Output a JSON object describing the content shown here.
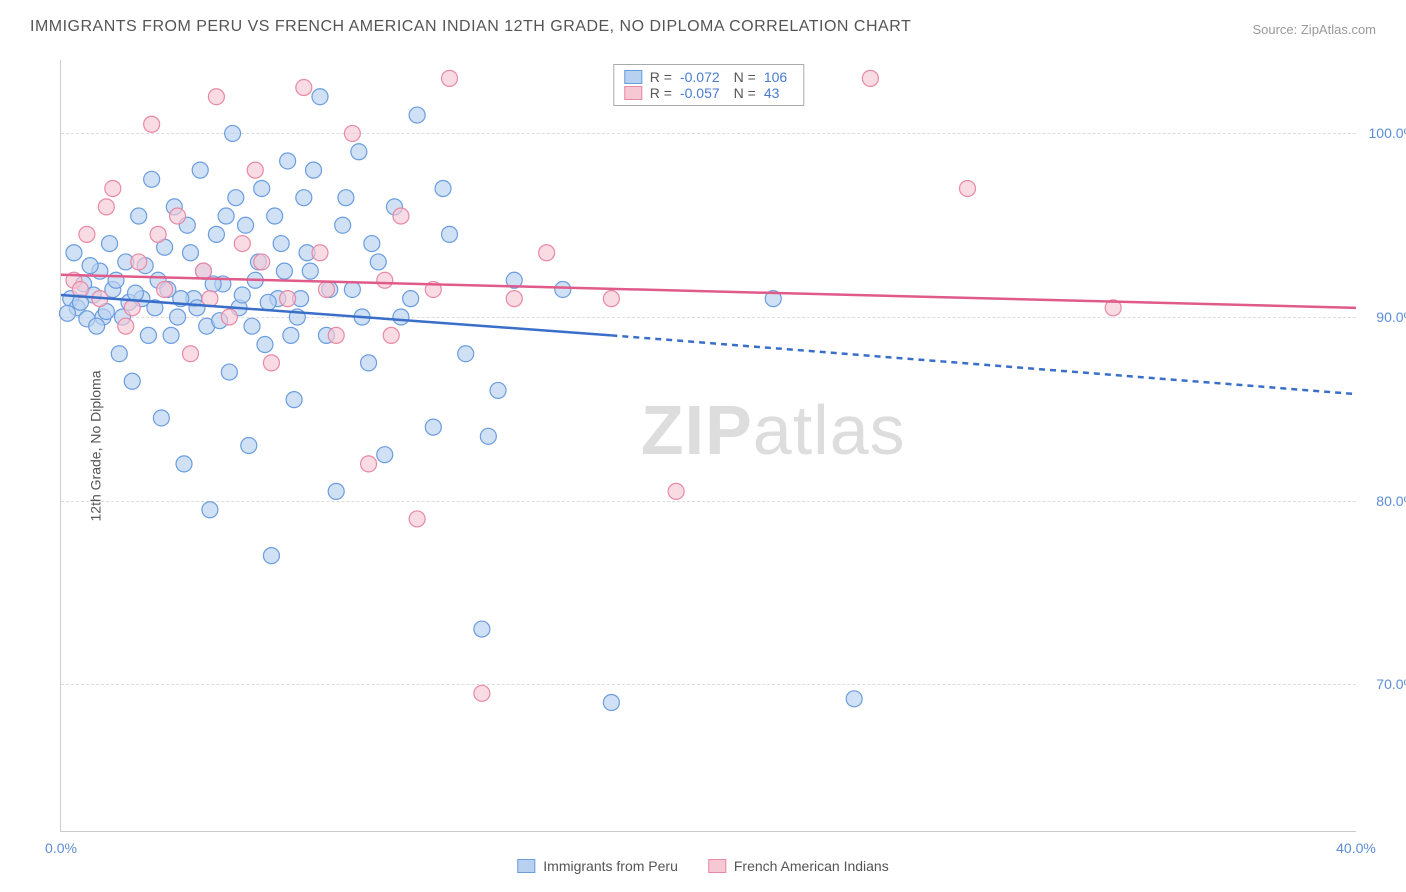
{
  "title": "IMMIGRANTS FROM PERU VS FRENCH AMERICAN INDIAN 12TH GRADE, NO DIPLOMA CORRELATION CHART",
  "source": "Source: ZipAtlas.com",
  "ylabel": "12th Grade, No Diploma",
  "watermark_bold": "ZIP",
  "watermark_light": "atlas",
  "chart": {
    "type": "scatter",
    "xlim": [
      0,
      40
    ],
    "ylim": [
      62,
      104
    ],
    "xticks": [
      0,
      40
    ],
    "xtick_labels": [
      "0.0%",
      "40.0%"
    ],
    "yticks": [
      70,
      80,
      90,
      100
    ],
    "ytick_labels": [
      "70.0%",
      "80.0%",
      "90.0%",
      "100.0%"
    ],
    "grid_color": "#dddddd",
    "axis_color": "#cccccc",
    "background_color": "#ffffff",
    "series": [
      {
        "name": "Immigrants from Peru",
        "color_fill": "#b9d1f0",
        "color_stroke": "#6a9de0",
        "marker_radius": 8,
        "line_color": "#3a6fc9",
        "line_width": 2.5,
        "trend_solid": {
          "x1": 0,
          "y1": 91.2,
          "x2": 17,
          "y2": 89.0
        },
        "trend_dashed": {
          "x1": 17,
          "y1": 89.0,
          "x2": 40,
          "y2": 85.8
        },
        "R": "-0.072",
        "N": "106",
        "points": [
          [
            0.3,
            91.0
          ],
          [
            0.5,
            90.5
          ],
          [
            0.7,
            91.8
          ],
          [
            0.8,
            89.9
          ],
          [
            1.0,
            91.2
          ],
          [
            1.2,
            92.5
          ],
          [
            1.3,
            90.0
          ],
          [
            1.5,
            94.0
          ],
          [
            1.6,
            91.5
          ],
          [
            1.8,
            88.0
          ],
          [
            2.0,
            93.0
          ],
          [
            2.1,
            90.8
          ],
          [
            2.2,
            86.5
          ],
          [
            2.4,
            95.5
          ],
          [
            2.5,
            91.0
          ],
          [
            2.7,
            89.0
          ],
          [
            2.8,
            97.5
          ],
          [
            3.0,
            92.0
          ],
          [
            3.1,
            84.5
          ],
          [
            3.3,
            91.5
          ],
          [
            3.5,
            96.0
          ],
          [
            3.6,
            90.0
          ],
          [
            3.8,
            82.0
          ],
          [
            4.0,
            93.5
          ],
          [
            4.1,
            91.0
          ],
          [
            4.3,
            98.0
          ],
          [
            4.5,
            89.5
          ],
          [
            4.6,
            79.5
          ],
          [
            4.8,
            94.5
          ],
          [
            5.0,
            91.8
          ],
          [
            5.2,
            87.0
          ],
          [
            5.3,
            100.0
          ],
          [
            5.5,
            90.5
          ],
          [
            5.7,
            95.0
          ],
          [
            5.8,
            83.0
          ],
          [
            6.0,
            92.0
          ],
          [
            6.2,
            97.0
          ],
          [
            6.3,
            88.5
          ],
          [
            6.5,
            77.0
          ],
          [
            6.7,
            91.0
          ],
          [
            6.8,
            94.0
          ],
          [
            7.0,
            98.5
          ],
          [
            7.2,
            85.5
          ],
          [
            7.3,
            90.0
          ],
          [
            7.5,
            96.5
          ],
          [
            7.7,
            92.5
          ],
          [
            8.0,
            102.0
          ],
          [
            8.2,
            89.0
          ],
          [
            8.5,
            80.5
          ],
          [
            8.7,
            95.0
          ],
          [
            9.0,
            91.5
          ],
          [
            9.2,
            99.0
          ],
          [
            9.5,
            87.5
          ],
          [
            9.8,
            93.0
          ],
          [
            10.0,
            82.5
          ],
          [
            10.3,
            96.0
          ],
          [
            10.5,
            90.0
          ],
          [
            11.0,
            101.0
          ],
          [
            11.5,
            84.0
          ],
          [
            12.0,
            94.5
          ],
          [
            12.5,
            88.0
          ],
          [
            13.0,
            73.0
          ],
          [
            13.5,
            86.0
          ],
          [
            14.0,
            92.0
          ],
          [
            15.5,
            91.5
          ],
          [
            17.0,
            69.0
          ],
          [
            22.0,
            91.0
          ],
          [
            24.5,
            69.2
          ],
          [
            0.2,
            90.2
          ],
          [
            0.4,
            93.5
          ],
          [
            0.6,
            90.8
          ],
          [
            0.9,
            92.8
          ],
          [
            1.1,
            89.5
          ],
          [
            1.4,
            90.3
          ],
          [
            1.7,
            92.0
          ],
          [
            1.9,
            90.0
          ],
          [
            2.3,
            91.3
          ],
          [
            2.6,
            92.8
          ],
          [
            2.9,
            90.5
          ],
          [
            3.2,
            93.8
          ],
          [
            3.4,
            89.0
          ],
          [
            3.7,
            91.0
          ],
          [
            3.9,
            95.0
          ],
          [
            4.2,
            90.5
          ],
          [
            4.4,
            92.5
          ],
          [
            4.7,
            91.8
          ],
          [
            4.9,
            89.8
          ],
          [
            5.1,
            95.5
          ],
          [
            5.4,
            96.5
          ],
          [
            5.6,
            91.2
          ],
          [
            5.9,
            89.5
          ],
          [
            6.1,
            93.0
          ],
          [
            6.4,
            90.8
          ],
          [
            6.6,
            95.5
          ],
          [
            6.9,
            92.5
          ],
          [
            7.1,
            89.0
          ],
          [
            7.4,
            91.0
          ],
          [
            7.6,
            93.5
          ],
          [
            7.8,
            98.0
          ],
          [
            8.3,
            91.5
          ],
          [
            8.8,
            96.5
          ],
          [
            9.3,
            90.0
          ],
          [
            9.6,
            94.0
          ],
          [
            10.8,
            91.0
          ],
          [
            11.8,
            97.0
          ],
          [
            13.2,
            83.5
          ]
        ]
      },
      {
        "name": "French American Indians",
        "color_fill": "#f5c8d4",
        "color_stroke": "#e889a5",
        "marker_radius": 8,
        "line_color": "#e05a8a",
        "line_width": 2.5,
        "trend_solid": {
          "x1": 0,
          "y1": 92.3,
          "x2": 40,
          "y2": 90.5
        },
        "trend_dashed": null,
        "R": "-0.057",
        "N": "43",
        "points": [
          [
            0.4,
            92.0
          ],
          [
            0.8,
            94.5
          ],
          [
            1.2,
            91.0
          ],
          [
            1.6,
            97.0
          ],
          [
            2.0,
            89.5
          ],
          [
            2.4,
            93.0
          ],
          [
            2.8,
            100.5
          ],
          [
            3.2,
            91.5
          ],
          [
            3.6,
            95.5
          ],
          [
            4.0,
            88.0
          ],
          [
            4.4,
            92.5
          ],
          [
            4.8,
            102.0
          ],
          [
            5.2,
            90.0
          ],
          [
            5.6,
            94.0
          ],
          [
            6.0,
            98.0
          ],
          [
            6.5,
            87.5
          ],
          [
            7.0,
            91.0
          ],
          [
            7.5,
            102.5
          ],
          [
            8.0,
            93.5
          ],
          [
            8.5,
            89.0
          ],
          [
            9.0,
            100.0
          ],
          [
            9.5,
            82.0
          ],
          [
            10.0,
            92.0
          ],
          [
            10.5,
            95.5
          ],
          [
            11.0,
            79.0
          ],
          [
            11.5,
            91.5
          ],
          [
            12.0,
            103.0
          ],
          [
            13.0,
            69.5
          ],
          [
            14.0,
            91.0
          ],
          [
            15.0,
            93.5
          ],
          [
            17.0,
            91.0
          ],
          [
            19.0,
            80.5
          ],
          [
            25.0,
            103.0
          ],
          [
            28.0,
            97.0
          ],
          [
            32.5,
            90.5
          ],
          [
            0.6,
            91.5
          ],
          [
            1.4,
            96.0
          ],
          [
            2.2,
            90.5
          ],
          [
            3.0,
            94.5
          ],
          [
            4.6,
            91.0
          ],
          [
            6.2,
            93.0
          ],
          [
            8.2,
            91.5
          ],
          [
            10.2,
            89.0
          ]
        ]
      }
    ]
  },
  "legend_bottom": [
    {
      "label": "Immigrants from Peru",
      "fill": "#b9d1f0",
      "stroke": "#6a9de0"
    },
    {
      "label": "French American Indians",
      "fill": "#f5c8d4",
      "stroke": "#e889a5"
    }
  ]
}
